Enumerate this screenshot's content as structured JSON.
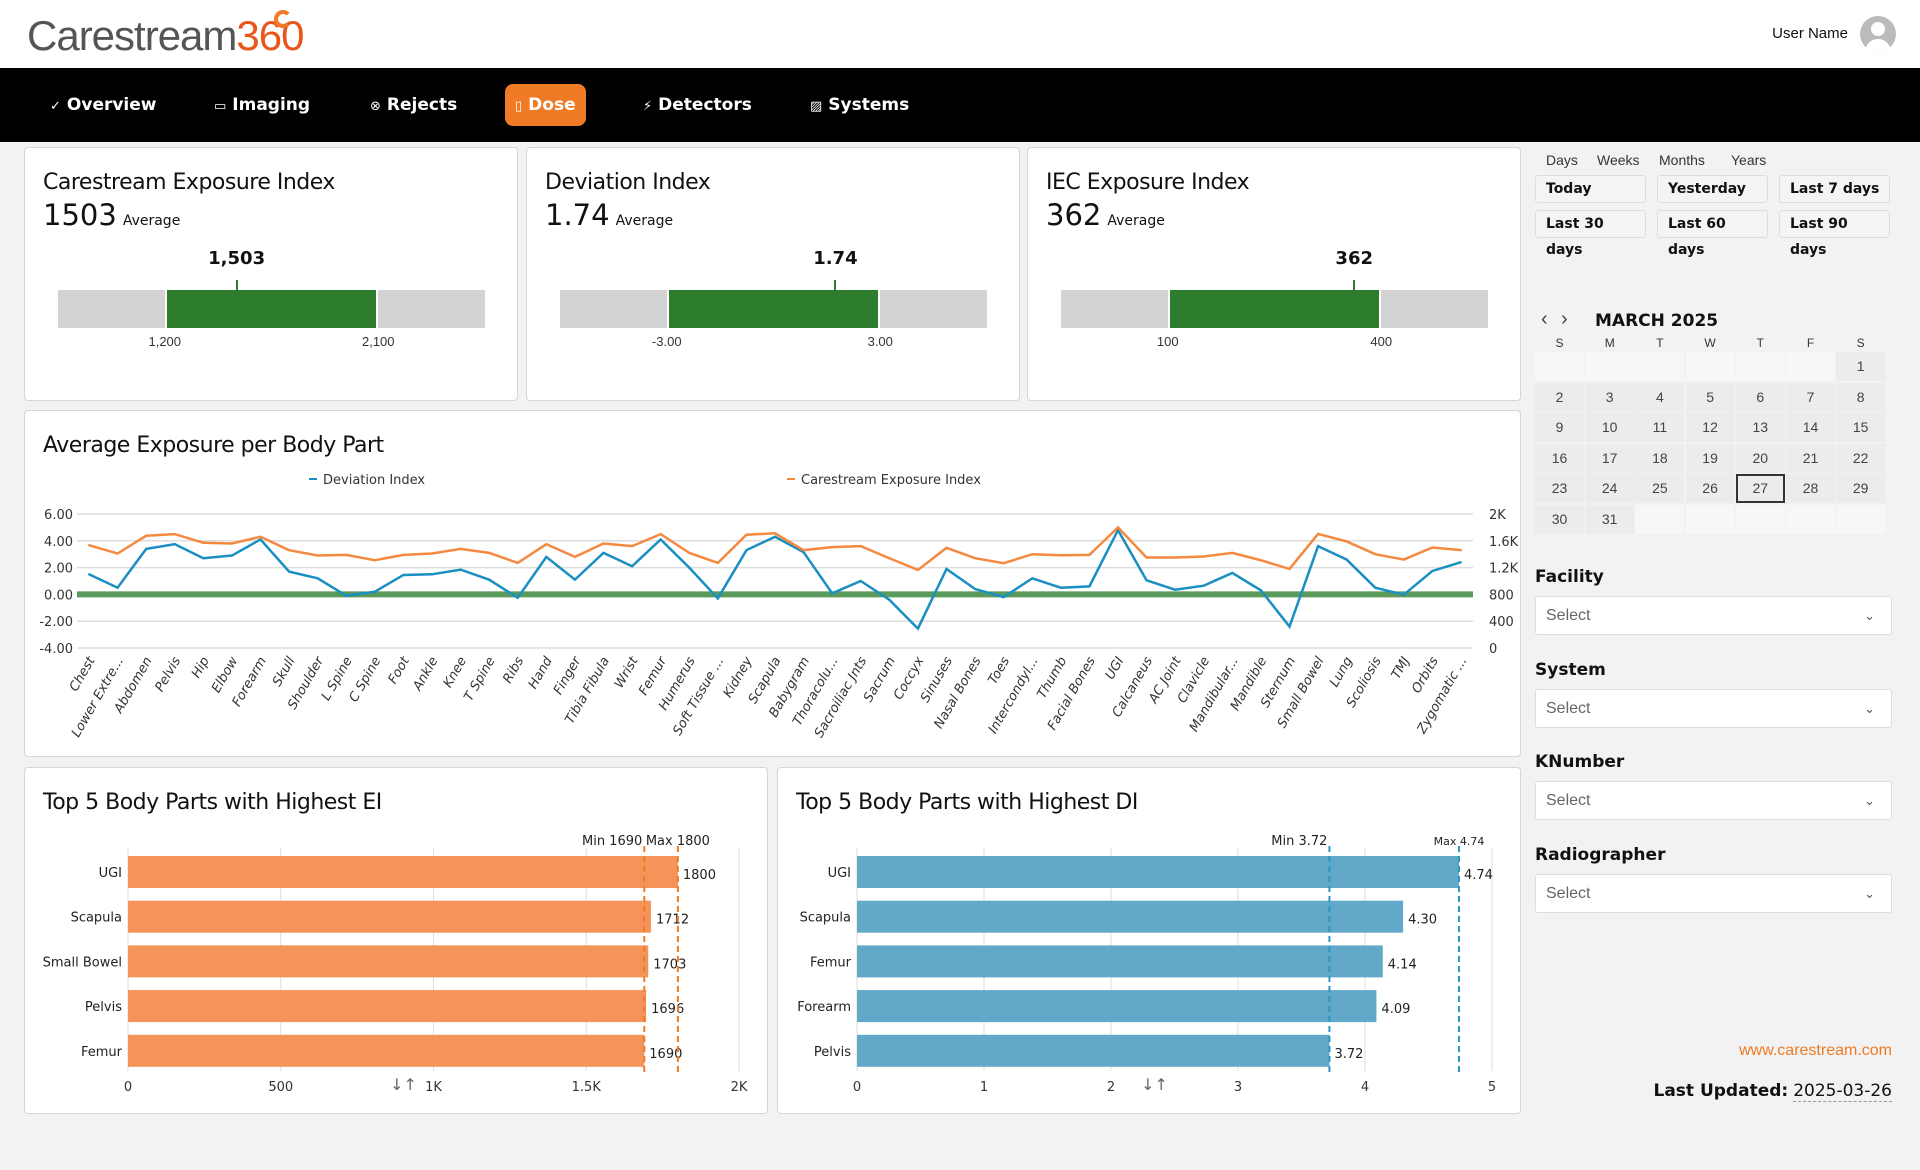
{
  "header": {
    "logo_text": "Carestream",
    "logo_num": "360",
    "user_name": "User Name"
  },
  "nav": {
    "items": [
      {
        "label": "Overview",
        "icon": "✓"
      },
      {
        "label": "Imaging",
        "icon": "▭"
      },
      {
        "label": "Rejects",
        "icon": "⊗"
      },
      {
        "label": "Dose",
        "icon": "▯"
      },
      {
        "label": "Detectors",
        "icon": "⚡"
      },
      {
        "label": "Systems",
        "icon": "▨"
      }
    ],
    "active": "Dose",
    "accent": "#ef7b27"
  },
  "kpis": [
    {
      "title": "Carestream Exposure Index",
      "value": "1503",
      "avg_label": "Average",
      "marker_label": "1,503",
      "low_label": "1,200",
      "high_label": "2,100",
      "low": 1200,
      "high": 2100,
      "value_num": 1503
    },
    {
      "title": "Deviation Index",
      "value": "1.74",
      "avg_label": "Average",
      "marker_label": "1.74",
      "low_label": "-3.00",
      "high_label": "3.00",
      "low": -3,
      "high": 3,
      "value_num": 1.74
    },
    {
      "title": "IEC Exposure Index",
      "value": "362",
      "avg_label": "Average",
      "marker_label": "362",
      "low_label": "100",
      "high_label": "400",
      "low": 100,
      "high": 400,
      "value_num": 362
    }
  ],
  "chart_data": [
    {
      "type": "line",
      "title": "Average Exposure per Body Part",
      "categories": [
        "Chest",
        "Lower Extre...",
        "Abdomen",
        "Pelvis",
        "Hip",
        "Elbow",
        "Forearm",
        "Skull",
        "Shoulder",
        "L Spine",
        "C Spine",
        "Foot",
        "Ankle",
        "Knee",
        "T Spine",
        "Ribs",
        "Hand",
        "Finger",
        "Tibia Fibula",
        "Wrist",
        "Femur",
        "Humerus",
        "Soft Tissue ...",
        "Kidney",
        "Scapula",
        "Babygram",
        "Thoracolu...",
        "Sacroiliac Jnts",
        "Sacrum",
        "Coccyx",
        "Sinuses",
        "Nasal Bones",
        "Toes",
        "Intercondyl...",
        "Thumb",
        "Facial Bones",
        "UGI",
        "Calcaneus",
        "AC Joint",
        "Clavicle",
        "Mandibular...",
        "Mandible",
        "Sternum",
        "Small Bowel",
        "Lung",
        "Scoliosis",
        "TMJ",
        "Orbits",
        "Zygomatic ..."
      ],
      "series": [
        {
          "name": "Deviation Index",
          "axis": "left",
          "color": "#1a8fc1",
          "values": [
            1.5,
            0.5,
            3.4,
            3.75,
            2.7,
            2.9,
            4.1,
            1.7,
            1.2,
            -0.1,
            0.2,
            1.45,
            1.5,
            1.85,
            1.1,
            -0.25,
            2.8,
            1.1,
            3.1,
            2.1,
            4.1,
            2.0,
            -0.3,
            3.3,
            4.3,
            3.15,
            0.08,
            1.0,
            -0.4,
            -2.55,
            1.9,
            0.4,
            -0.2,
            1.2,
            0.5,
            0.6,
            4.8,
            1.05,
            0.35,
            0.65,
            1.6,
            0.3,
            -2.4,
            3.6,
            2.6,
            0.5,
            -0.02,
            1.75,
            2.4
          ]
        },
        {
          "name": "Carestream Exposure Index",
          "axis": "right",
          "color": "#f4893f",
          "values": [
            1535,
            1410,
            1675,
            1700,
            1570,
            1560,
            1660,
            1460,
            1380,
            1390,
            1310,
            1390,
            1410,
            1480,
            1420,
            1270,
            1550,
            1360,
            1560,
            1520,
            1700,
            1420,
            1270,
            1690,
            1712,
            1460,
            1505,
            1520,
            1340,
            1165,
            1495,
            1340,
            1265,
            1400,
            1385,
            1390,
            1800,
            1350,
            1350,
            1365,
            1420,
            1310,
            1180,
            1703,
            1590,
            1400,
            1320,
            1500,
            1460
          ]
        }
      ],
      "reference_line": {
        "value": 0,
        "color": "#5a9a5a"
      },
      "left_axis": {
        "range": [
          -4,
          6
        ],
        "ticks": [
          "-4.00",
          "-2.00",
          "0.00",
          "2.00",
          "4.00",
          "6.00"
        ]
      },
      "right_axis": {
        "range": [
          0,
          2000
        ],
        "ticks": [
          "0",
          "400",
          "800",
          "1.2K",
          "1.6K",
          "2K"
        ]
      },
      "legend": "top-center",
      "grid": true
    },
    {
      "type": "bar",
      "orientation": "horizontal",
      "title": "Top 5 Body Parts with Highest EI",
      "color": "#f4935a",
      "categories": [
        "UGI",
        "Scapula",
        "Small Bowel",
        "Pelvis",
        "Femur"
      ],
      "values": [
        1800,
        1712,
        1703,
        1696,
        1690
      ],
      "value_labels": [
        "1800",
        "1712",
        "1703",
        "1696",
        "1690"
      ],
      "xlim": [
        0,
        2000
      ],
      "ticks": [
        "0",
        "500",
        "1K",
        "1.5K",
        "2K"
      ],
      "min_label": "Min 1690",
      "max_label": "Max 1800",
      "min": 1690,
      "max": 1800,
      "sort_icon": "↓↑"
    },
    {
      "type": "bar",
      "orientation": "horizontal",
      "title": "Top 5 Body Parts with Highest DI",
      "color": "#62a9c9",
      "categories": [
        "UGI",
        "Scapula",
        "Femur",
        "Forearm",
        "Pelvis"
      ],
      "values": [
        4.74,
        4.3,
        4.14,
        4.09,
        3.72
      ],
      "value_labels": [
        "4.74",
        "4.30",
        "4.14",
        "4.09",
        "3.72"
      ],
      "xlim": [
        0,
        5
      ],
      "ticks": [
        "0",
        "1",
        "2",
        "3",
        "4",
        "5"
      ],
      "min_label": "Min 3.72",
      "max_label": "Max 4.74",
      "min": 3.72,
      "max": 4.74,
      "sort_icon": "↓↑"
    }
  ],
  "panel": {
    "period_tabs": [
      "Days",
      "Weeks",
      "Months",
      "Years"
    ],
    "quick_ranges": [
      "Today",
      "Yesterday",
      "Last 7 days",
      "Last 30 days",
      "Last 60 days",
      "Last 90 days"
    ],
    "calendar": {
      "month": "MARCH 2025",
      "day_names": [
        "S",
        "M",
        "T",
        "W",
        "T",
        "F",
        "S"
      ],
      "weeks": [
        [
          "",
          "",
          "",
          "",
          "",
          "",
          "1"
        ],
        [
          "2",
          "3",
          "4",
          "5",
          "6",
          "7",
          "8"
        ],
        [
          "9",
          "10",
          "11",
          "12",
          "13",
          "14",
          "15"
        ],
        [
          "16",
          "17",
          "18",
          "19",
          "20",
          "21",
          "22"
        ],
        [
          "23",
          "24",
          "25",
          "26",
          "27",
          "28",
          "29"
        ],
        [
          "30",
          "31",
          "",
          "",
          "",
          "",
          ""
        ]
      ],
      "selected": "27"
    },
    "filters": [
      {
        "label": "Facility",
        "value": "Select"
      },
      {
        "label": "System",
        "value": "Select"
      },
      {
        "label": "KNumber",
        "value": "Select"
      },
      {
        "label": "Radiographer",
        "value": "Select"
      }
    ],
    "website": "www.carestream.com",
    "last_updated_label": "Last Updated:",
    "last_updated": "2025-03-26"
  }
}
